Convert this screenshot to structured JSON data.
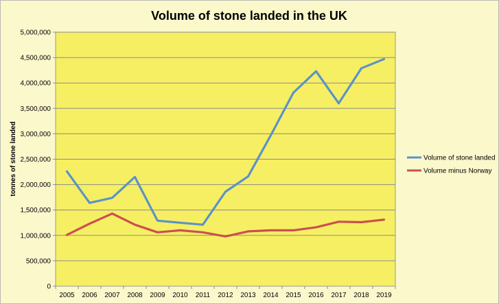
{
  "chart_data": {
    "type": "line",
    "title": "Volume of stone landed in the UK",
    "ylabel": "tonnes of stone landed",
    "xlabel": "",
    "x": [
      "2005",
      "2006",
      "2007",
      "2008",
      "2009",
      "2010",
      "2011",
      "2012",
      "2013",
      "2014",
      "2015",
      "2016",
      "2017",
      "2018",
      "2019"
    ],
    "y_ticks": [
      "0",
      "500,000",
      "1,000,000",
      "1,500,000",
      "2,000,000",
      "2,500,000",
      "3,000,000",
      "3,500,000",
      "4,000,000",
      "4,500,000",
      "5,000,000"
    ],
    "ylim": [
      0,
      5000000
    ],
    "grid": true,
    "legend_position": "right",
    "plot_background": "#f7ef63",
    "series": [
      {
        "name": "Volume of stone landed",
        "color": "#5a92c9",
        "values": [
          2260000,
          1640000,
          1740000,
          2150000,
          1290000,
          1250000,
          1210000,
          1860000,
          2160000,
          2970000,
          3810000,
          4230000,
          3600000,
          4290000,
          4470000
        ]
      },
      {
        "name": "Volume minus Norway",
        "color": "#c9504e",
        "values": [
          1010000,
          1230000,
          1430000,
          1210000,
          1060000,
          1100000,
          1060000,
          980000,
          1080000,
          1100000,
          1100000,
          1160000,
          1270000,
          1260000,
          1310000
        ]
      }
    ]
  }
}
